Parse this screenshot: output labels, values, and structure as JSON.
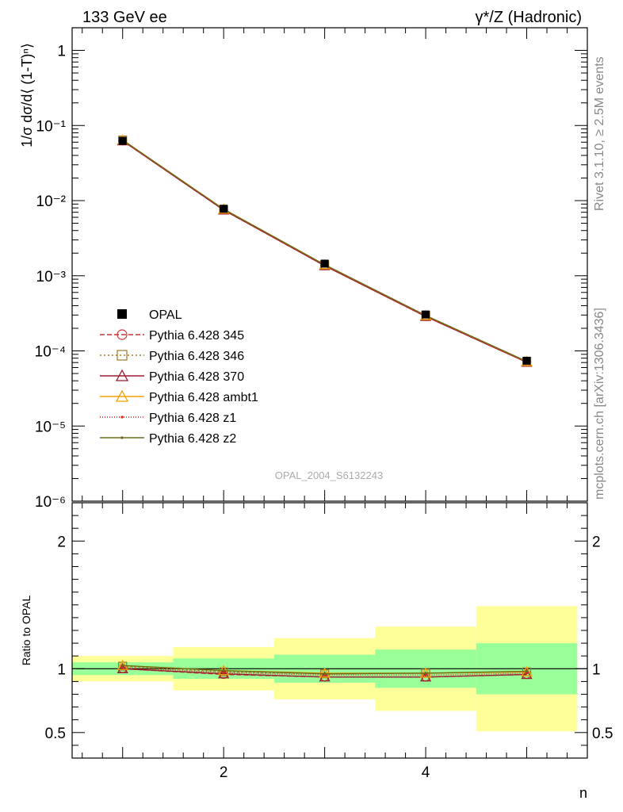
{
  "header": {
    "left_title": "133 GeV ee",
    "right_title": "γ*/Z (Hadronic)"
  },
  "side_labels": {
    "rivet": "Rivet 3.1.10, ≥ 2.5M events",
    "mcplots": "mcplots.cern.ch [arXiv:1306.3436]"
  },
  "watermark": "OPAL_2004_S6132243",
  "chart_data": [
    {
      "type": "line",
      "scale": "log",
      "ylabel": "1/σ dσ/d⟨ (1-T)ⁿ⟩",
      "xlabel": "n",
      "xlim": [
        0.5,
        5.6
      ],
      "ylim": [
        1e-06,
        2
      ],
      "y_tick_labels": [
        "1",
        "10⁻¹",
        "10⁻²",
        "10⁻³",
        "10⁻⁴",
        "10⁻⁵",
        "10⁻⁶"
      ],
      "x": [
        1,
        2,
        3,
        4,
        5
      ],
      "legend_position": "bottom-left",
      "data": {
        "name": "OPAL",
        "values": [
          0.0625,
          0.0078,
          0.00145,
          0.000305,
          7.4e-05
        ]
      },
      "series": [
        {
          "name": "Pythia 6.428 345",
          "color": "#cc3333",
          "marker": "open-circle",
          "dash": "6,3",
          "values": [
            0.0625,
            0.0075,
            0.00136,
            0.000287,
            7.1e-05
          ]
        },
        {
          "name": "Pythia 6.428 346",
          "color": "#a0762a",
          "marker": "open-square",
          "dash": "2,3",
          "values": [
            0.064,
            0.0076,
            0.0014,
            0.000296,
            7.25e-05
          ]
        },
        {
          "name": "Pythia 6.428 370",
          "color": "#9b1b30",
          "marker": "open-triangle",
          "dash": "",
          "values": [
            0.0625,
            0.0075,
            0.00136,
            0.000287,
            7.05e-05
          ]
        },
        {
          "name": "Pythia 6.428 ambt1",
          "color": "#f0a000",
          "marker": "open-triangle",
          "dash": "",
          "values": [
            0.064,
            0.0077,
            0.0014,
            0.000295,
            7.2e-05
          ]
        },
        {
          "name": "Pythia 6.428 z1",
          "color": "#dd2222",
          "marker": "dot",
          "dash": "1,2",
          "values": [
            0.0635,
            0.0076,
            0.00138,
            0.00029,
            7.15e-05
          ]
        },
        {
          "name": "Pythia 6.428 z2",
          "color": "#6b6b1a",
          "marker": "dot",
          "dash": "",
          "values": [
            0.064,
            0.0077,
            0.0014,
            0.000296,
            7.25e-05
          ]
        }
      ]
    },
    {
      "type": "line",
      "ylabel": "Ratio to OPAL",
      "xlabel": "n",
      "xlim": [
        0.5,
        5.6
      ],
      "ylim": [
        0.3,
        2.3
      ],
      "y_tick_labels": [
        "0.5",
        "1",
        "2"
      ],
      "x_tick_labels": [
        "2",
        "4"
      ],
      "x": [
        1,
        2,
        3,
        4,
        5
      ],
      "bands": {
        "bin_edges": [
          0.5,
          1.5,
          2.5,
          3.5,
          4.5,
          5.5
        ],
        "green_low": [
          0.95,
          0.92,
          0.89,
          0.85,
          0.8
        ],
        "green_high": [
          1.05,
          1.08,
          1.11,
          1.15,
          1.2
        ],
        "yellow_low": [
          0.9,
          0.83,
          0.76,
          0.67,
          0.51
        ],
        "yellow_high": [
          1.1,
          1.17,
          1.24,
          1.33,
          1.49
        ]
      },
      "series": [
        {
          "name": "Pythia 6.428 345",
          "values": [
            1.0,
            0.955,
            0.935,
            0.935,
            0.955
          ]
        },
        {
          "name": "Pythia 6.428 346",
          "values": [
            1.02,
            0.975,
            0.96,
            0.965,
            0.975
          ]
        },
        {
          "name": "Pythia 6.428 370",
          "values": [
            1.0,
            0.96,
            0.935,
            0.935,
            0.955
          ]
        },
        {
          "name": "Pythia 6.428 ambt1",
          "values": [
            1.025,
            0.985,
            0.965,
            0.965,
            0.975
          ]
        },
        {
          "name": "Pythia 6.428 z1",
          "values": [
            1.01,
            0.97,
            0.95,
            0.95,
            0.965
          ]
        },
        {
          "name": "Pythia 6.428 z2",
          "values": [
            1.025,
            0.985,
            0.96,
            0.965,
            0.98
          ]
        }
      ]
    }
  ]
}
